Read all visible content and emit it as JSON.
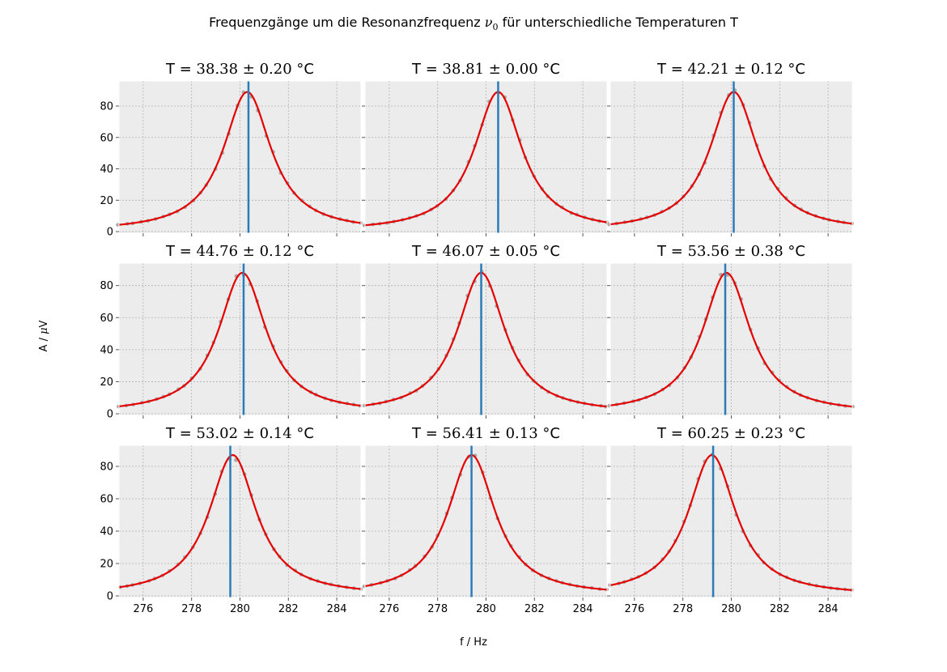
{
  "figure": {
    "title_prefix": "Frequenzgänge um die Resonanzfrequenz ",
    "title_symbol": "ν",
    "title_symbol_sub": "0",
    "title_suffix": " für unterschiedliche Temperaturen T",
    "xlabel": "f / Hz",
    "ylabel_prefix": "A / ",
    "ylabel_symbol": "μ",
    "ylabel_suffix": "V"
  },
  "colors": {
    "fit": "#e50000",
    "marker": "#2b7bb9",
    "points": "#9c9c9c",
    "axes_bg": "#ececec",
    "grid": "#b0b0b0"
  },
  "chart_data": [
    {
      "type": "line",
      "title_prefix": "T = ",
      "temp": "38.38",
      "err": "0.20",
      "unit": " °C",
      "series": [
        {
          "x0": 280.3,
          "peak": 89,
          "gamma": 1.2,
          "offset": 0
        }
      ],
      "resonance_marker": 280.35,
      "xlim": [
        275,
        285
      ],
      "ylim": [
        -1,
        96
      ],
      "xticks": [
        276,
        278,
        280,
        282,
        284
      ],
      "yticks": [
        0,
        20,
        40,
        60,
        80
      ],
      "grid": true
    },
    {
      "type": "line",
      "title_prefix": "T = ",
      "temp": "38.81",
      "err": "0.00",
      "unit": " °C",
      "series": [
        {
          "x0": 280.5,
          "peak": 89,
          "gamma": 1.2,
          "offset": 0
        }
      ],
      "resonance_marker": 280.5,
      "xlim": [
        275,
        285
      ],
      "ylim": [
        -1,
        96
      ],
      "xticks": [
        276,
        278,
        280,
        282,
        284
      ],
      "yticks": [
        0,
        20,
        40,
        60,
        80
      ],
      "grid": true
    },
    {
      "type": "line",
      "title_prefix": "T = ",
      "temp": "42.21",
      "err": "0.12",
      "unit": " °C",
      "series": [
        {
          "x0": 280.1,
          "peak": 89,
          "gamma": 1.2,
          "offset": 0
        }
      ],
      "resonance_marker": 280.1,
      "xlim": [
        275,
        285
      ],
      "ylim": [
        -1,
        96
      ],
      "xticks": [
        276,
        278,
        280,
        282,
        284
      ],
      "yticks": [
        0,
        20,
        40,
        60,
        80
      ],
      "grid": true
    },
    {
      "type": "line",
      "title_prefix": "T = ",
      "temp": "44.76",
      "err": "0.12",
      "unit": " °C",
      "series": [
        {
          "x0": 280.1,
          "peak": 88,
          "gamma": 1.2,
          "offset": 0
        }
      ],
      "resonance_marker": 280.15,
      "xlim": [
        275,
        285
      ],
      "ylim": [
        -1,
        94
      ],
      "xticks": [
        276,
        278,
        280,
        282,
        284
      ],
      "yticks": [
        0,
        20,
        40,
        60,
        80
      ],
      "grid": true
    },
    {
      "type": "line",
      "title_prefix": "T = ",
      "temp": "46.07",
      "err": "0.05",
      "unit": " °C",
      "series": [
        {
          "x0": 279.8,
          "peak": 88,
          "gamma": 1.2,
          "offset": 0
        }
      ],
      "resonance_marker": 279.8,
      "xlim": [
        275,
        285
      ],
      "ylim": [
        -1,
        94
      ],
      "xticks": [
        276,
        278,
        280,
        282,
        284
      ],
      "yticks": [
        0,
        20,
        40,
        60,
        80
      ],
      "grid": true
    },
    {
      "type": "line",
      "title_prefix": "T = ",
      "temp": "53.56",
      "err": "0.38",
      "unit": " °C",
      "series": [
        {
          "x0": 279.8,
          "peak": 88,
          "gamma": 1.2,
          "offset": 0
        }
      ],
      "resonance_marker": 279.75,
      "xlim": [
        275,
        285
      ],
      "ylim": [
        -1,
        94
      ],
      "xticks": [
        276,
        278,
        280,
        282,
        284
      ],
      "yticks": [
        0,
        20,
        40,
        60,
        80
      ],
      "grid": true
    },
    {
      "type": "line",
      "title_prefix": "T = ",
      "temp": "53.02",
      "err": "0.14",
      "unit": " °C",
      "series": [
        {
          "x0": 279.7,
          "peak": 87,
          "gamma": 1.2,
          "offset": 0
        }
      ],
      "resonance_marker": 279.6,
      "xlim": [
        275,
        285
      ],
      "ylim": [
        -1,
        93
      ],
      "xticks": [
        276,
        278,
        280,
        282,
        284
      ],
      "yticks": [
        0,
        20,
        40,
        60,
        80
      ],
      "grid": true
    },
    {
      "type": "line",
      "title_prefix": "T = ",
      "temp": "56.41",
      "err": "0.13",
      "unit": " °C",
      "series": [
        {
          "x0": 279.4,
          "peak": 87,
          "gamma": 1.2,
          "offset": 0
        }
      ],
      "resonance_marker": 279.4,
      "xlim": [
        275,
        285
      ],
      "ylim": [
        -1,
        93
      ],
      "xticks": [
        276,
        278,
        280,
        282,
        284
      ],
      "yticks": [
        0,
        20,
        40,
        60,
        80
      ],
      "grid": true
    },
    {
      "type": "line",
      "title_prefix": "T = ",
      "temp": "60.25",
      "err": "0.23",
      "unit": " °C",
      "series": [
        {
          "x0": 279.2,
          "peak": 87,
          "gamma": 1.2,
          "offset": 0
        }
      ],
      "resonance_marker": 279.25,
      "xlim": [
        275,
        285
      ],
      "ylim": [
        -1,
        93
      ],
      "xticks": [
        276,
        278,
        280,
        282,
        284
      ],
      "yticks": [
        0,
        20,
        40,
        60,
        80
      ],
      "grid": true
    }
  ]
}
